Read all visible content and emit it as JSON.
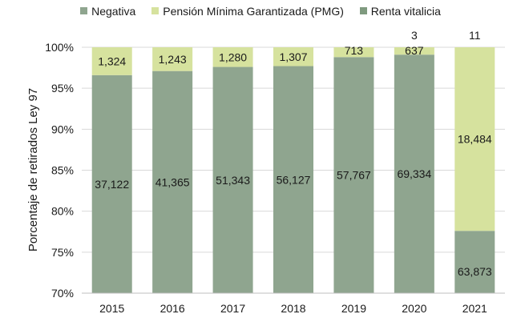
{
  "chart_data": {
    "type": "bar",
    "stacked": true,
    "categories": [
      "2015",
      "2016",
      "2017",
      "2018",
      "2019",
      "2020",
      "2021"
    ],
    "series": [
      {
        "name": "Negativa",
        "color": "#8fa58f",
        "percent": [
          96.6,
          97.1,
          97.6,
          97.7,
          98.8,
          99.1,
          77.6
        ],
        "labels": [
          "37,122",
          "41,365",
          "51,343",
          "56,127",
          "57,767",
          "69,334",
          "63,873"
        ]
      },
      {
        "name": "Pensión Mínima Garantizada (PMG)",
        "color": "#d6e29e",
        "percent": [
          3.4,
          2.9,
          2.4,
          2.3,
          1.2,
          0.9,
          22.4
        ],
        "labels": [
          "1,324",
          "1,243",
          "1,280",
          "1,307",
          "713",
          "637",
          "18,484"
        ]
      },
      {
        "name": "Renta vitalicia",
        "color": "#7f9a7f",
        "percent": [
          0,
          0,
          0,
          0,
          0,
          0.004,
          0.013
        ],
        "labels": [
          "",
          "",
          "",
          "",
          "",
          "3",
          "11"
        ]
      }
    ],
    "ylabel": "Porcentaje de retirados Ley 97",
    "ylim": [
      70,
      100
    ],
    "yticks": [
      "70%",
      "75%",
      "80%",
      "85%",
      "90%",
      "95%",
      "100%"
    ],
    "gridlines": true,
    "legend_position": "top"
  }
}
